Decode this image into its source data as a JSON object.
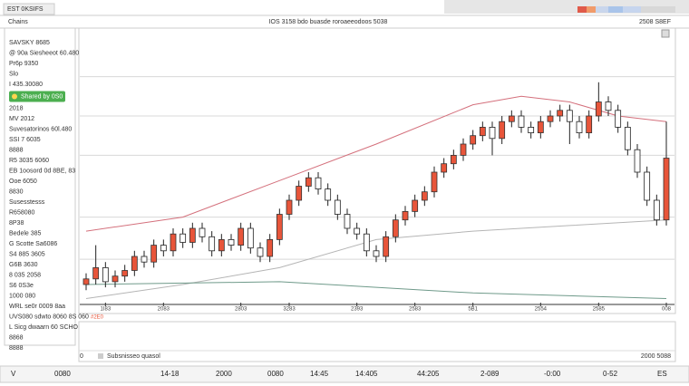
{
  "top_bar": {
    "badge": "EST 0KSIFS"
  },
  "header": {
    "left": "Chains",
    "center": "IOS 3158 bdo buasde roroaeeodoos 5038",
    "right": "2508 S8EF"
  },
  "sidebar": {
    "items_top": [
      "SAVSKY 8685",
      "@ 90a Siesheeot 60.480",
      "Pr6p 9350",
      "Slo",
      "I 435.30080"
    ],
    "button": "Shared by 0S0",
    "items_bottom": [
      "2018",
      "MV 2012",
      "Suvesatorinos 60l.480",
      "SSI 7 6035",
      "8888",
      "R5 3035 6060",
      "EB 1oosord 0d 8BE, 83",
      "Ooe 6050",
      "8830",
      "Susesstesss",
      "R658080",
      "8P38",
      "Bedele 385",
      "G Scotte Sa6086",
      "S4 885 3605",
      "G6B 3630",
      "8 035 2058",
      "S6 0S3e",
      "1000 080",
      "WRL se0r 0009 8aa",
      "UVS080 sdwto 8060 8S 060",
      "L Sicg dwaarn 60 SCHO",
      "8868",
      "8888"
    ]
  },
  "chart": {
    "type": "candlestick",
    "ylim": [
      0,
      100
    ],
    "grid_levels": [
      84,
      70,
      56,
      34,
      19
    ],
    "open": [
      10,
      12,
      16,
      11,
      13,
      15,
      20,
      18,
      24,
      22,
      28,
      25,
      30,
      27,
      22,
      26,
      24,
      30,
      23,
      20,
      26,
      35,
      40,
      45,
      48,
      44,
      40,
      35,
      30,
      28,
      22,
      20,
      27,
      33,
      36,
      40,
      43,
      50,
      53,
      56,
      60,
      63,
      66,
      62,
      68,
      70,
      66,
      64,
      68,
      70,
      72,
      68,
      64,
      70,
      75,
      72,
      66,
      58,
      50,
      40,
      33
    ],
    "high": [
      14,
      24,
      18,
      15,
      17,
      22,
      22,
      26,
      26,
      30,
      30,
      32,
      32,
      29,
      28,
      28,
      32,
      32,
      25,
      28,
      37,
      42,
      47,
      50,
      50,
      46,
      42,
      37,
      32,
      30,
      24,
      29,
      35,
      38,
      42,
      45,
      52,
      55,
      58,
      62,
      65,
      68,
      68,
      70,
      72,
      72,
      68,
      70,
      72,
      74,
      74,
      70,
      72,
      82,
      77,
      74,
      68,
      60,
      52,
      42,
      68
    ],
    "low": [
      8,
      10,
      9,
      9,
      11,
      13,
      16,
      16,
      20,
      20,
      23,
      23,
      25,
      20,
      20,
      22,
      22,
      21,
      18,
      18,
      24,
      33,
      38,
      43,
      42,
      38,
      33,
      28,
      26,
      20,
      18,
      18,
      25,
      31,
      34,
      38,
      41,
      48,
      51,
      54,
      58,
      61,
      56,
      60,
      66,
      64,
      62,
      62,
      66,
      68,
      60,
      62,
      62,
      68,
      70,
      64,
      56,
      48,
      38,
      31,
      31
    ],
    "close": [
      12,
      16,
      11,
      13,
      15,
      20,
      18,
      24,
      22,
      28,
      25,
      30,
      27,
      22,
      26,
      24,
      30,
      23,
      20,
      26,
      35,
      40,
      45,
      48,
      44,
      40,
      35,
      30,
      28,
      22,
      20,
      27,
      33,
      36,
      40,
      43,
      50,
      53,
      56,
      60,
      63,
      66,
      62,
      68,
      70,
      66,
      64,
      68,
      70,
      72,
      68,
      64,
      70,
      75,
      72,
      66,
      58,
      50,
      40,
      33,
      55
    ],
    "up_color": "#e8553a",
    "down_color": "#222222",
    "overlays": [
      {
        "color": "#d4707c",
        "x": [
          0,
          10,
          20,
          30,
          40,
          45,
          50,
          55,
          60
        ],
        "values": [
          29,
          34,
          47,
          60,
          74,
          77,
          75,
          70,
          68
        ]
      },
      {
        "color": "#b5b5b5",
        "x": [
          0,
          10,
          20,
          30,
          40,
          50,
          60
        ],
        "values": [
          5,
          10,
          16,
          26,
          29,
          31,
          33
        ]
      },
      {
        "color": "#6f9a8a",
        "x": [
          0,
          20,
          40,
          60
        ],
        "values": [
          10,
          11,
          7,
          5
        ]
      }
    ],
    "xticks": [
      {
        "value": 2,
        "label": "1I83"
      },
      {
        "value": 8,
        "label": "2083"
      },
      {
        "value": 16,
        "label": "2803"
      },
      {
        "value": 21,
        "label": "3283"
      },
      {
        "value": 28,
        "label": "2393"
      },
      {
        "value": 34,
        "label": "2583"
      },
      {
        "value": 40,
        "label": "5B1"
      },
      {
        "value": 47,
        "label": "2554"
      },
      {
        "value": 53,
        "label": "2585"
      },
      {
        "value": 60,
        "label": "008"
      }
    ],
    "marker": "#2E0"
  },
  "lower_panel": {
    "left": "0",
    "legend": "Subsnisseo quasol",
    "right": "2000 5088"
  },
  "footer": {
    "cells": [
      "V",
      "0080",
      "14-18",
      "2000",
      "0080",
      "14:45",
      "14:405",
      "44:205",
      "2-089",
      "-0:00",
      "0-52",
      "ES"
    ]
  }
}
